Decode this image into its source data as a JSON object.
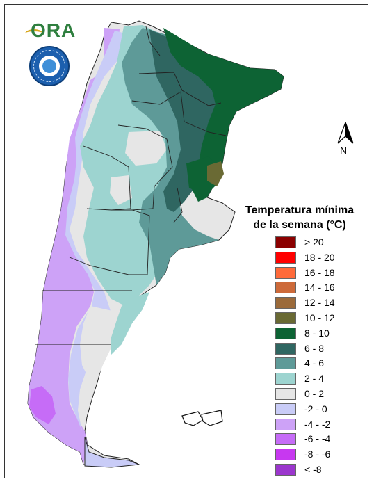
{
  "legend": {
    "title_line1": "Temperatura mínima",
    "title_line2": "de la semana (°C)",
    "classes": [
      {
        "label": "> 20",
        "color": "#8b0000"
      },
      {
        "label": "18 - 20",
        "color": "#ff0000"
      },
      {
        "label": "16 - 18",
        "color": "#ff6a3a"
      },
      {
        "label": "14 - 16",
        "color": "#cd6a3a"
      },
      {
        "label": "12 - 14",
        "color": "#9b6a3a"
      },
      {
        "label": "10 - 12",
        "color": "#6a6a34"
      },
      {
        "label": "8 - 10",
        "color": "#0d6334"
      },
      {
        "label": "6 - 8",
        "color": "#2f6661"
      },
      {
        "label": "4 - 6",
        "color": "#5e9a98"
      },
      {
        "label": "2 - 4",
        "color": "#9dd4d0"
      },
      {
        "label": "0 - 2",
        "color": "#e6e6e6"
      },
      {
        "label": "-2 - 0",
        "color": "#c9ccf7"
      },
      {
        "label": "-4 - -2",
        "color": "#cda2f7"
      },
      {
        "label": "-6 - -4",
        "color": "#c66cf7"
      },
      {
        "label": "-8 - -6",
        "color": "#c738f0"
      },
      {
        "label": "< -8",
        "color": "#9b36cd"
      }
    ]
  },
  "logos": {
    "ora_text": "ORA"
  },
  "north_arrow": {
    "label": "N"
  }
}
